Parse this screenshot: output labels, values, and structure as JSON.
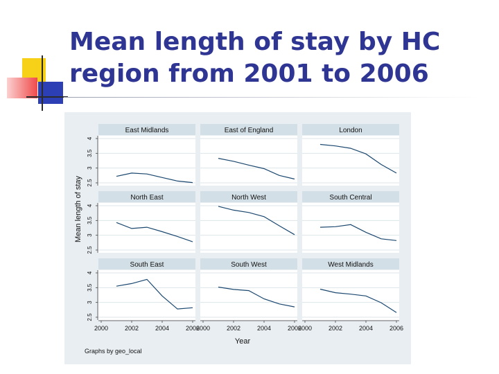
{
  "slide": {
    "title_line1": "Mean length of stay by HC",
    "title_line2": "region from 2001 to 2006"
  },
  "colors": {
    "title": "#2e3592",
    "chart_background": "#e9eef2",
    "panel_header": "#d3dfe6",
    "plot_area": "#ffffff",
    "gridline": "#dde4e9",
    "series_line": "#1a476f",
    "deco_yellow": "#f7d117",
    "deco_red": "#f04a4a",
    "deco_blue": "#2d3fb4"
  },
  "chart_data": {
    "type": "line",
    "layout": "small-multiples 3x3",
    "title": "",
    "xlabel": "Year",
    "ylabel": "Mean length of stay",
    "note": "Graphs by geo_local",
    "xlim": [
      2000,
      2006
    ],
    "ylim": [
      2.5,
      4
    ],
    "x_ticks": [
      2000,
      2002,
      2004,
      2006
    ],
    "x_tick_labels": [
      "2000",
      "2002",
      "2004",
      "2006",
      "2000",
      "2002",
      "2004",
      "2006",
      "2000",
      "2002",
      "2004",
      "2006"
    ],
    "y_ticks": [
      2.5,
      3,
      3.5,
      4
    ],
    "y_tick_labels": [
      "2.5",
      "3",
      "3.5",
      "4"
    ],
    "grid": true,
    "x": [
      2001,
      2002,
      2003,
      2004,
      2005,
      2006
    ],
    "panels": [
      {
        "name": "East Midlands",
        "values": [
          2.72,
          2.83,
          2.8,
          2.68,
          2.56,
          2.51
        ]
      },
      {
        "name": "East of England",
        "values": [
          3.33,
          3.23,
          3.1,
          2.98,
          2.75,
          2.63
        ]
      },
      {
        "name": "London",
        "values": [
          3.8,
          3.75,
          3.67,
          3.48,
          3.12,
          2.83
        ]
      },
      {
        "name": "North East",
        "values": [
          3.43,
          3.23,
          3.27,
          3.12,
          2.96,
          2.78
        ]
      },
      {
        "name": "North West",
        "values": [
          3.98,
          3.85,
          3.77,
          3.63,
          3.32,
          3.02
        ]
      },
      {
        "name": "South Central",
        "values": [
          3.27,
          3.29,
          3.36,
          3.1,
          2.88,
          2.82
        ]
      },
      {
        "name": "South East",
        "values": [
          3.55,
          3.64,
          3.78,
          3.22,
          2.78,
          2.82
        ]
      },
      {
        "name": "South West",
        "values": [
          3.52,
          3.44,
          3.4,
          3.12,
          2.95,
          2.85
        ]
      },
      {
        "name": "West Midlands",
        "values": [
          3.45,
          3.33,
          3.28,
          3.22,
          2.99,
          2.66
        ]
      }
    ]
  }
}
